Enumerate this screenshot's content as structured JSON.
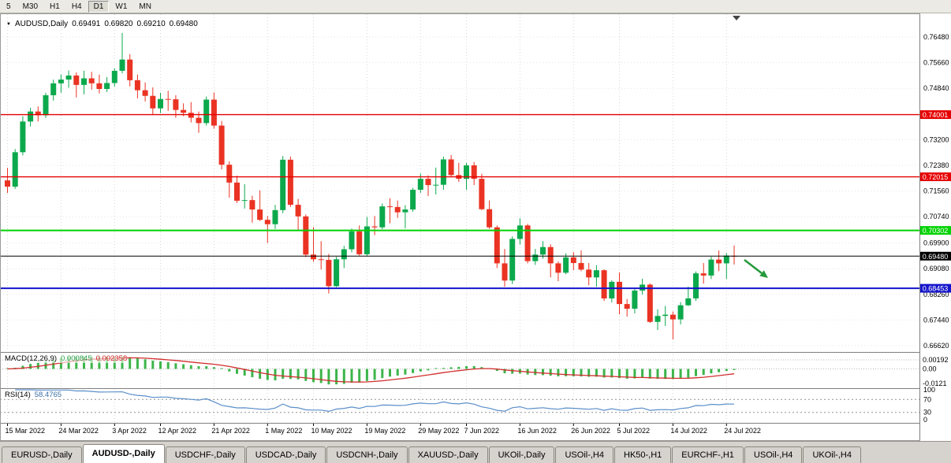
{
  "toolbar": {
    "periods": [
      "5",
      "M30",
      "H1",
      "H4",
      "D1",
      "W1",
      "MN"
    ],
    "active": "D1"
  },
  "chart": {
    "symbol_title": "AUDUSD,Daily",
    "open": "0.69491",
    "high": "0.69820",
    "low": "0.69210",
    "close": "0.69480"
  },
  "price_axis": {
    "labels": [
      "0.76480",
      "0.75660",
      "0.74840",
      "0.73200",
      "0.72380",
      "0.71560",
      "0.70740",
      "0.69900",
      "0.69080",
      "0.68260",
      "0.67440",
      "0.66620"
    ]
  },
  "macd_panel": {
    "title": "MACD(12,26,9)",
    "main_value": "0.000845",
    "signal_value": "0.002358",
    "axis_labels": [
      "0.00192",
      "0.00",
      "-0.0121"
    ],
    "color_main": "#3cb54a",
    "color_signal": "#d22d2d"
  },
  "rsi_panel": {
    "title": "RSI(14)",
    "value": "58.4765",
    "axis_labels": [
      "100",
      "70",
      "30",
      "0"
    ],
    "levels": [
      70,
      30
    ],
    "color": "#5b8fc9"
  },
  "annotations": {
    "arrow": {
      "color": "#259a3c",
      "direction": "down-right"
    }
  },
  "tabs": {
    "items": [
      {
        "label": "EURUSD-,Daily",
        "active": false
      },
      {
        "label": "AUDUSD-,Daily",
        "active": true
      },
      {
        "label": "USDCHF-,Daily",
        "active": false
      },
      {
        "label": "USDCAD-,Daily",
        "active": false
      },
      {
        "label": "USDCNH-,Daily",
        "active": false
      },
      {
        "label": "XAUUSD-,Daily",
        "active": false
      },
      {
        "label": "UKOil-,Daily",
        "active": false
      },
      {
        "label": "USOil-,H4",
        "active": false
      },
      {
        "label": "HK50-,H1",
        "active": false
      },
      {
        "label": "EURCHF-,H1",
        "active": false
      },
      {
        "label": "USOil-,H4",
        "active": false
      },
      {
        "label": "UKOil-,H4",
        "active": false
      }
    ]
  },
  "chart_data": {
    "type": "candlestick",
    "symbol": "AUDUSD",
    "timeframe": "Daily",
    "ylim": [
      0.6662,
      0.7648
    ],
    "colors": {
      "up": "#0ca94c",
      "down": "#ea3323"
    },
    "hlines": [
      {
        "name": "resistance-line-0.74001",
        "value": 0.74001,
        "label": "0.74001",
        "color": "#e60000",
        "width": 1.4
      },
      {
        "name": "resistance-line-0.72015",
        "value": 0.72015,
        "label": "0.72015",
        "color": "#e60000",
        "width": 1.4
      },
      {
        "name": "support-line-0.70302",
        "value": 0.70302,
        "label": "0.70302",
        "color": "#00d200",
        "width": 2
      },
      {
        "name": "current-price-line-0.69480",
        "value": 0.6948,
        "label": "0.69480",
        "color": "#000000",
        "width": 1
      },
      {
        "name": "support-line-0.68453",
        "value": 0.68453,
        "label": "0.68453",
        "color": "#1414cc",
        "width": 2
      }
    ],
    "x_labels": [
      {
        "t": "15 Mar 2022",
        "i": 0
      },
      {
        "t": "24 Mar 2022",
        "i": 7
      },
      {
        "t": "3 Apr 2022",
        "i": 14
      },
      {
        "t": "12 Apr 2022",
        "i": 20
      },
      {
        "t": "21 Apr 2022",
        "i": 27
      },
      {
        "t": "1 May 2022",
        "i": 34
      },
      {
        "t": "10 May 2022",
        "i": 40
      },
      {
        "t": "19 May 2022",
        "i": 47
      },
      {
        "t": "29 May 2022",
        "i": 54
      },
      {
        "t": "7 Jun 2022",
        "i": 60
      },
      {
        "t": "16 Jun 2022",
        "i": 67
      },
      {
        "t": "26 Jun 2022",
        "i": 74
      },
      {
        "t": "5 Jul 2022",
        "i": 80
      },
      {
        "t": "14 Jul 2022",
        "i": 87
      },
      {
        "t": "24 Jul 2022",
        "i": 94
      }
    ],
    "ohlc": [
      [
        0.719,
        0.723,
        0.715,
        0.717
      ],
      [
        0.717,
        0.729,
        0.7163,
        0.728
      ],
      [
        0.728,
        0.7395,
        0.727,
        0.7378
      ],
      [
        0.7378,
        0.7422,
        0.7362,
        0.741
      ],
      [
        0.741,
        0.7426,
        0.7378,
        0.7398
      ],
      [
        0.7398,
        0.747,
        0.739,
        0.7462
      ],
      [
        0.7462,
        0.7512,
        0.7445,
        0.75
      ],
      [
        0.75,
        0.7528,
        0.747,
        0.7512
      ],
      [
        0.7512,
        0.7541,
        0.7486,
        0.7525
      ],
      [
        0.7525,
        0.7535,
        0.7455,
        0.7495
      ],
      [
        0.7495,
        0.754,
        0.7465,
        0.7516
      ],
      [
        0.7516,
        0.7537,
        0.748,
        0.75
      ],
      [
        0.75,
        0.7528,
        0.7468,
        0.7482
      ],
      [
        0.7482,
        0.752,
        0.7472,
        0.7501
      ],
      [
        0.7501,
        0.7548,
        0.749,
        0.754
      ],
      [
        0.754,
        0.7661,
        0.7532,
        0.7576
      ],
      [
        0.7576,
        0.7593,
        0.749,
        0.751
      ],
      [
        0.751,
        0.7528,
        0.7452,
        0.7478
      ],
      [
        0.7478,
        0.7503,
        0.7442,
        0.746
      ],
      [
        0.746,
        0.7487,
        0.74,
        0.742
      ],
      [
        0.742,
        0.747,
        0.7405,
        0.745
      ],
      [
        0.745,
        0.7476,
        0.7412,
        0.7449
      ],
      [
        0.7449,
        0.7462,
        0.739,
        0.7415
      ],
      [
        0.7415,
        0.7436,
        0.7395,
        0.7406
      ],
      [
        0.7406,
        0.744,
        0.7375,
        0.739
      ],
      [
        0.739,
        0.741,
        0.7342,
        0.7373
      ],
      [
        0.7373,
        0.7458,
        0.7365,
        0.7448
      ],
      [
        0.7448,
        0.7471,
        0.7355,
        0.7365
      ],
      [
        0.7365,
        0.738,
        0.7225,
        0.724
      ],
      [
        0.724,
        0.7251,
        0.7135,
        0.7183
      ],
      [
        0.7183,
        0.7205,
        0.7118,
        0.7125
      ],
      [
        0.7125,
        0.7178,
        0.71,
        0.7127
      ],
      [
        0.7127,
        0.7141,
        0.7055,
        0.7097
      ],
      [
        0.7097,
        0.7158,
        0.706,
        0.7064
      ],
      [
        0.7064,
        0.7076,
        0.699,
        0.705
      ],
      [
        0.705,
        0.7112,
        0.7035,
        0.7095
      ],
      [
        0.7095,
        0.7268,
        0.7085,
        0.7256
      ],
      [
        0.7256,
        0.7266,
        0.7105,
        0.7112
      ],
      [
        0.7112,
        0.7131,
        0.703,
        0.7075
      ],
      [
        0.7075,
        0.7081,
        0.6945,
        0.6953
      ],
      [
        0.6953,
        0.7041,
        0.693,
        0.6938
      ],
      [
        0.6938,
        0.6996,
        0.6905,
        0.6936
      ],
      [
        0.6936,
        0.6955,
        0.6829,
        0.6852
      ],
      [
        0.6852,
        0.6946,
        0.6849,
        0.6938
      ],
      [
        0.6938,
        0.6981,
        0.691,
        0.697
      ],
      [
        0.697,
        0.7036,
        0.696,
        0.7027
      ],
      [
        0.7027,
        0.7046,
        0.695,
        0.6954
      ],
      [
        0.6954,
        0.7073,
        0.6949,
        0.7043
      ],
      [
        0.7043,
        0.7076,
        0.7015,
        0.704
      ],
      [
        0.704,
        0.7116,
        0.7034,
        0.7107
      ],
      [
        0.7107,
        0.7133,
        0.7053,
        0.7105
      ],
      [
        0.7105,
        0.7126,
        0.707,
        0.7088
      ],
      [
        0.7088,
        0.7111,
        0.7037,
        0.7097
      ],
      [
        0.7097,
        0.7166,
        0.709,
        0.716
      ],
      [
        0.716,
        0.7212,
        0.715,
        0.7195
      ],
      [
        0.7195,
        0.7206,
        0.714,
        0.7175
      ],
      [
        0.7175,
        0.7231,
        0.7145,
        0.7176
      ],
      [
        0.7176,
        0.7266,
        0.716,
        0.7257
      ],
      [
        0.7257,
        0.7271,
        0.72,
        0.7207
      ],
      [
        0.7207,
        0.7246,
        0.7185,
        0.7195
      ],
      [
        0.7195,
        0.7246,
        0.716,
        0.7238
      ],
      [
        0.7238,
        0.7249,
        0.7175,
        0.7195
      ],
      [
        0.7195,
        0.7211,
        0.7095,
        0.7098
      ],
      [
        0.7098,
        0.7126,
        0.7035,
        0.704
      ],
      [
        0.704,
        0.7046,
        0.691,
        0.6925
      ],
      [
        0.6925,
        0.6971,
        0.685,
        0.687
      ],
      [
        0.687,
        0.7011,
        0.6859,
        0.7003
      ],
      [
        0.7003,
        0.7069,
        0.6985,
        0.7046
      ],
      [
        0.7046,
        0.7051,
        0.6925,
        0.6932
      ],
      [
        0.6932,
        0.6971,
        0.692,
        0.6953
      ],
      [
        0.6953,
        0.6996,
        0.694,
        0.6977
      ],
      [
        0.6977,
        0.6986,
        0.688,
        0.6925
      ],
      [
        0.6925,
        0.6931,
        0.6868,
        0.6895
      ],
      [
        0.6895,
        0.6957,
        0.689,
        0.6944
      ],
      [
        0.6944,
        0.6961,
        0.6903,
        0.6926
      ],
      [
        0.6926,
        0.6966,
        0.69,
        0.6905
      ],
      [
        0.6905,
        0.6926,
        0.6855,
        0.688
      ],
      [
        0.688,
        0.6919,
        0.685,
        0.6903
      ],
      [
        0.6903,
        0.6906,
        0.6805,
        0.6813
      ],
      [
        0.6813,
        0.6871,
        0.68,
        0.6866
      ],
      [
        0.6866,
        0.6896,
        0.6762,
        0.6795
      ],
      [
        0.6795,
        0.6811,
        0.6755,
        0.678
      ],
      [
        0.678,
        0.6844,
        0.6765,
        0.6838
      ],
      [
        0.6838,
        0.6876,
        0.6825,
        0.6857
      ],
      [
        0.6857,
        0.6861,
        0.6735,
        0.6738
      ],
      [
        0.6738,
        0.6778,
        0.6712,
        0.6757
      ],
      [
        0.6757,
        0.6789,
        0.6725,
        0.6761
      ],
      [
        0.6761,
        0.6771,
        0.6682,
        0.6746
      ],
      [
        0.6746,
        0.6801,
        0.673,
        0.6791
      ],
      [
        0.6791,
        0.6851,
        0.6789,
        0.6813
      ],
      [
        0.6813,
        0.6899,
        0.6805,
        0.6893
      ],
      [
        0.6893,
        0.6926,
        0.686,
        0.6886
      ],
      [
        0.6886,
        0.6946,
        0.6875,
        0.6937
      ],
      [
        0.6937,
        0.6966,
        0.69,
        0.6925
      ],
      [
        0.6925,
        0.6958,
        0.6875,
        0.695
      ],
      [
        0.69491,
        0.6982,
        0.6921,
        0.6948
      ]
    ]
  }
}
